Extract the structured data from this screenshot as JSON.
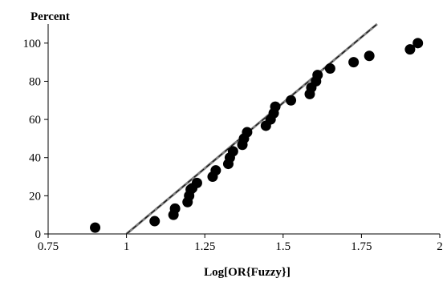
{
  "chart_data": {
    "type": "scatter",
    "title": "",
    "xlabel": "Log[OR{Fuzzy}]",
    "ylabel": "Percent",
    "xlim": [
      0.75,
      2
    ],
    "ylim": [
      0,
      110
    ],
    "x_ticks": [
      0.75,
      1,
      1.25,
      1.5,
      1.75,
      2
    ],
    "x_tick_labels": [
      "0.75",
      "1",
      "1.25",
      "1.5",
      "1.75",
      "2"
    ],
    "y_ticks": [
      0,
      20,
      40,
      60,
      80,
      100
    ],
    "y_tick_labels": [
      "0",
      "20",
      "40",
      "60",
      "80",
      "100"
    ],
    "grid": false,
    "legend": false,
    "colors": {
      "points": "#000000",
      "fit_line": "#808080",
      "fit_line_inner": "#000000"
    },
    "fit_line": {
      "x": [
        1.0,
        1.8
      ],
      "y": [
        0,
        110
      ]
    },
    "series": [
      {
        "x": [
          0.9,
          1.09,
          1.15,
          1.155,
          1.195,
          1.2,
          1.205,
          1.21,
          1.225,
          1.275,
          1.285,
          1.325,
          1.33,
          1.34,
          1.37,
          1.375,
          1.385,
          1.445,
          1.46,
          1.47,
          1.475,
          1.525,
          1.585,
          1.59,
          1.605,
          1.61,
          1.65,
          1.725,
          1.775,
          1.905,
          1.93
        ],
        "y": [
          3.3,
          6.7,
          10.0,
          13.3,
          16.7,
          20.0,
          23.3,
          24.0,
          26.7,
          30.0,
          33.3,
          36.7,
          40.0,
          43.3,
          46.7,
          50.0,
          53.3,
          56.7,
          60.0,
          63.3,
          66.7,
          70.0,
          73.3,
          76.7,
          80.0,
          83.3,
          86.7,
          90.0,
          93.3,
          96.7,
          100.0
        ]
      }
    ]
  }
}
